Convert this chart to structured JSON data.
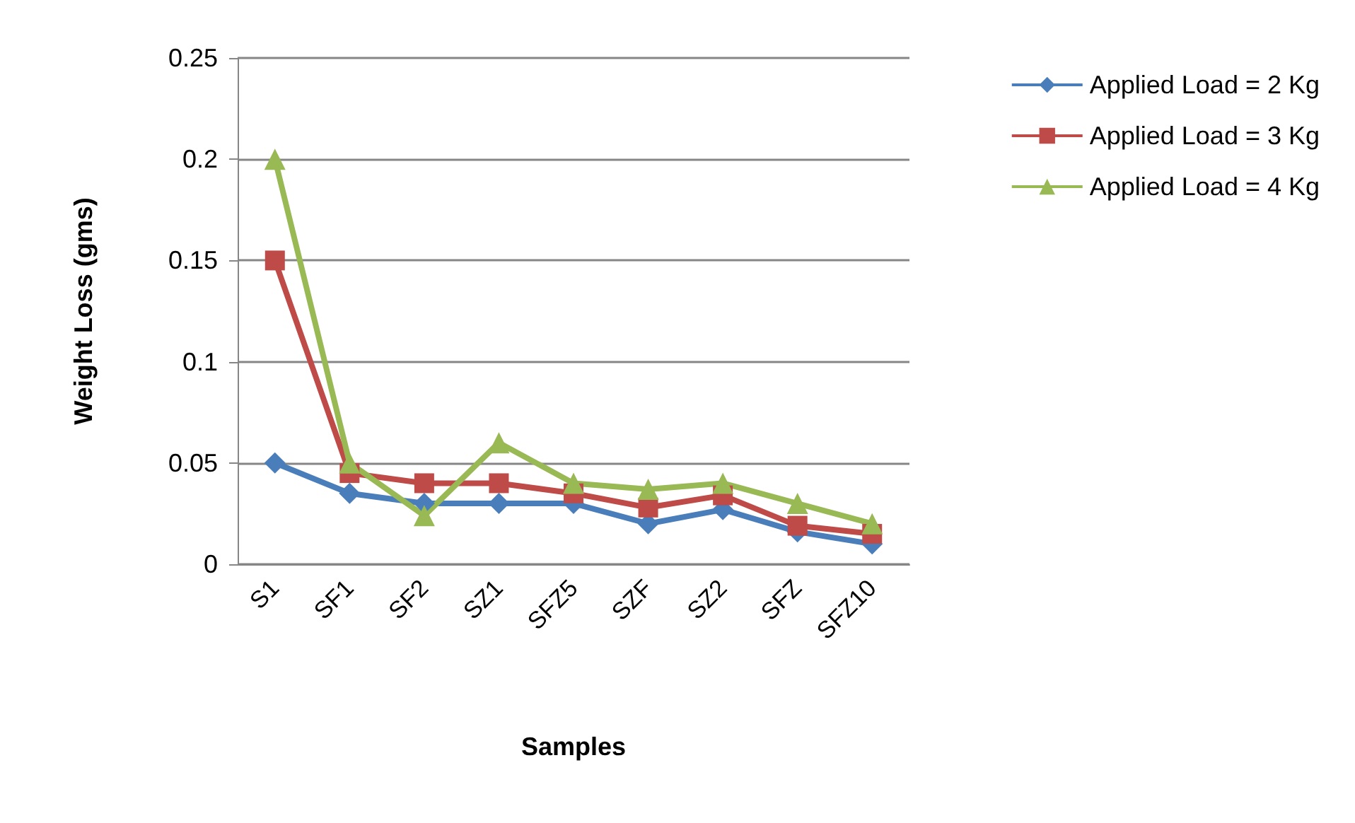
{
  "chart_data": {
    "type": "line",
    "xlabel": "Samples",
    "ylabel": "Weight Loss (gms)",
    "categories": [
      "S1",
      "SF1",
      "SF2",
      "SZ1",
      "SFZ5",
      "SZF",
      "SZ2",
      "SFZ",
      "SFZ10"
    ],
    "series": [
      {
        "name": "Applied Load = 2 Kg",
        "color": "#4a7ebb",
        "marker": "diamond",
        "values": [
          0.05,
          0.035,
          0.03,
          0.03,
          0.03,
          0.02,
          0.027,
          0.016,
          0.01
        ]
      },
      {
        "name": "Applied Load = 3 Kg",
        "color": "#be4b48",
        "marker": "square",
        "values": [
          0.15,
          0.045,
          0.04,
          0.04,
          0.035,
          0.028,
          0.034,
          0.019,
          0.015
        ]
      },
      {
        "name": "Applied Load = 4 Kg",
        "color": "#98b954",
        "marker": "triangle",
        "values": [
          0.2,
          0.05,
          0.024,
          0.06,
          0.04,
          0.037,
          0.04,
          0.03,
          0.02
        ]
      }
    ],
    "ylim": [
      0,
      0.25
    ],
    "yticks": [
      0,
      0.05,
      0.1,
      0.15,
      0.2,
      0.25
    ],
    "grid": "y",
    "legend": "top right",
    "line_style": "solid"
  }
}
